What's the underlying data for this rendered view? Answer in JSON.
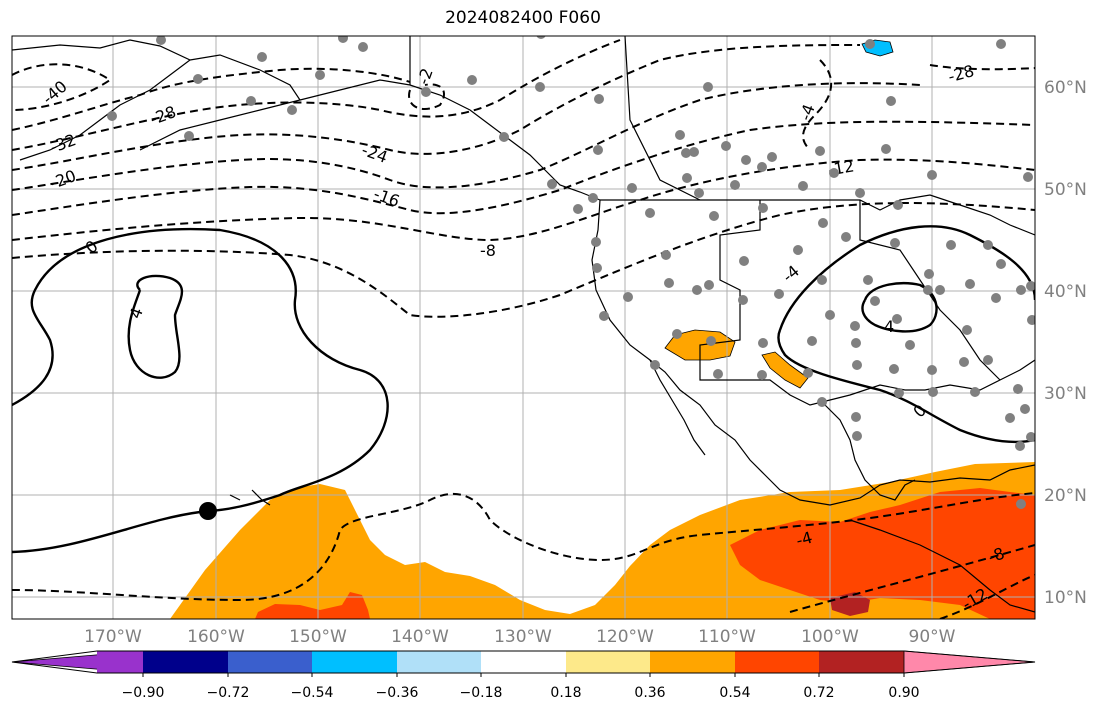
{
  "title": "2024082400 F060",
  "lat_labels": [
    "60°N",
    "50°N",
    "40°N",
    "30°N",
    "20°N",
    "10°N"
  ],
  "lon_labels": [
    "170°W",
    "160°W",
    "150°W",
    "140°W",
    "130°W",
    "120°W",
    "110°W",
    "100°W",
    "90°W"
  ],
  "colorbar": {
    "ticks": [
      "−0.90",
      "−0.72",
      "−0.54",
      "−0.36",
      "−0.18",
      "0.18",
      "0.36",
      "0.54",
      "0.72",
      "0.90"
    ],
    "colors": [
      "#9932cc",
      "#00008b",
      "#3a5fcd",
      "#00bfff",
      "#b0e0f8",
      "#ffffff",
      "#fde98a",
      "#ffa500",
      "#ff4500",
      "#b22222",
      "#ff88aa"
    ]
  },
  "contour_labels": [
    "-40",
    "-32",
    "-28",
    "-20",
    "-24",
    "-16",
    "-8",
    "0",
    "4",
    "-28",
    "-12",
    "-4",
    "4",
    "0",
    "-4",
    "-8",
    "-12",
    "-2",
    "-4"
  ],
  "colors": {
    "grid": "#b0b0b0",
    "orange": "#ffa500",
    "red_orange": "#ff4500",
    "dark_red": "#b22222",
    "station": "#808080",
    "sky": "#00bfff"
  }
}
